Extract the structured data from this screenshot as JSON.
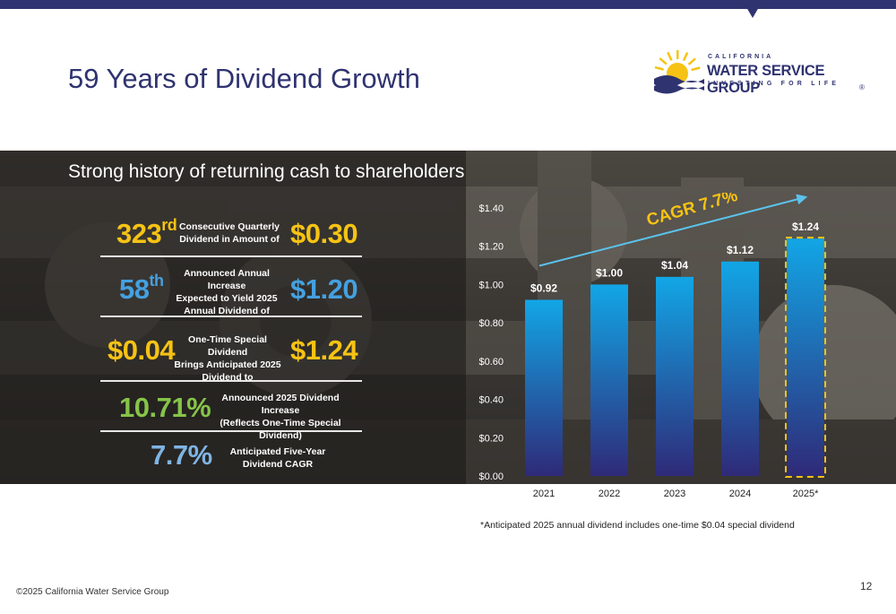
{
  "title": "59 Years of Dividend Growth",
  "logo": {
    "top": "CALIFORNIA",
    "main": "WATER SERVICE GROUP",
    "sub": "INVESTING FOR LIFE",
    "reg": "®"
  },
  "subtitle": "Strong history of returning cash to shareholders",
  "stats": [
    {
      "value": "323",
      "suffix": "rd",
      "desc": [
        "Consecutive Quarterly",
        "Dividend in Amount of"
      ],
      "amount": "$0.30"
    },
    {
      "value": "58",
      "suffix": "th",
      "desc": [
        "Announced Annual Increase",
        "Expected to Yield 2025",
        "Annual Dividend of"
      ],
      "amount": "$1.20"
    },
    {
      "value": "$0.04",
      "desc": [
        "One-Time Special Dividend",
        "Brings Anticipated 2025",
        "Dividend to"
      ],
      "amount": "$1.24"
    },
    {
      "value": "10.71%",
      "desc": [
        "Announced 2025 Dividend Increase",
        "(Reflects One-Time Special Dividend)"
      ]
    },
    {
      "value": "7.7%",
      "desc": [
        "Anticipated Five-Year",
        "Dividend CAGR"
      ]
    }
  ],
  "chart_data": {
    "type": "bar",
    "categories": [
      "2021",
      "2022",
      "2023",
      "2024",
      "2025*"
    ],
    "values": [
      0.92,
      1.0,
      1.04,
      1.12,
      1.24
    ],
    "data_labels": [
      "$0.92",
      "$1.00",
      "$1.04",
      "$1.12",
      "$1.24"
    ],
    "y_ticks": [
      "$0.00",
      "$0.20",
      "$0.40",
      "$0.60",
      "$0.80",
      "$1.00",
      "$1.20",
      "$1.40"
    ],
    "ylim": [
      0,
      1.4
    ],
    "annotation": "CAGR 7.7%",
    "highlight_last_dashed": true,
    "bar_color_top": "#12a6e6",
    "bar_color_bottom": "#2f2a78",
    "dashed_color": "#f6c314"
  },
  "footnote": "*Anticipated 2025 annual dividend includes one-time $0.04 special dividend",
  "copyright": "©2025 California Water Service Group",
  "page_number": "12"
}
